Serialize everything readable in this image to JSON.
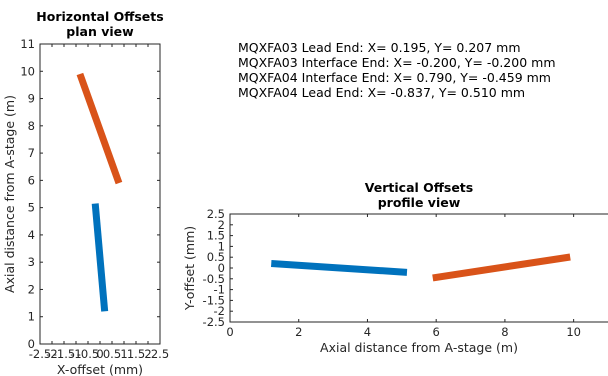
{
  "annotation_lines": [
    "MQXFA03 Lead End: X= 0.195, Y= 0.207  mm",
    "MQXFA03 Interface End: X= -0.200, Y= -0.200  mm",
    "MQXFA04 Interface End: X= 0.790, Y= -0.459  mm",
    "MQXFA04 Lead End: X= -0.837, Y= 0.510  mm"
  ],
  "colors": {
    "blue": "#0072bd",
    "orange": "#d95319"
  },
  "chart_data": [
    {
      "type": "line",
      "title_lines": [
        "Horizontal Offsets",
        "plan view"
      ],
      "xlabel": "X-offset (mm)",
      "ylabel": "Axial distance from A-stage (m)",
      "xlim": [
        -2.5,
        2.5
      ],
      "ylim": [
        0,
        11
      ],
      "xticks": [
        "-2.5",
        "-2",
        "-1.5",
        "-1",
        "-0.5",
        "0",
        "0.5",
        "1",
        "1.5",
        "2",
        "2.5"
      ],
      "yticks": [
        "0",
        "1",
        "2",
        "3",
        "4",
        "5",
        "6",
        "7",
        "8",
        "9",
        "10",
        "11"
      ],
      "grid": false,
      "series": [
        {
          "color": "#0072bd",
          "points": [
            [
              0.195,
              1.2
            ],
            [
              -0.2,
              5.15
            ]
          ]
        },
        {
          "color": "#d95319",
          "points": [
            [
              0.79,
              5.9
            ],
            [
              -0.837,
              9.9
            ]
          ]
        }
      ]
    },
    {
      "type": "line",
      "title_lines": [
        "Vertical Offsets",
        "profile view"
      ],
      "xlabel": "Axial distance from A-stage (m)",
      "ylabel": "Y-offset (mm)",
      "xlim": [
        0,
        11
      ],
      "ylim": [
        -2.5,
        2.5
      ],
      "xticks": [
        "0",
        "2",
        "4",
        "6",
        "8",
        "10"
      ],
      "yticks": [
        "-2.5",
        "-2",
        "-1.5",
        "-1",
        "-0.5",
        "0",
        "0.5",
        "1",
        "1.5",
        "2",
        "2.5"
      ],
      "grid": false,
      "series": [
        {
          "color": "#0072bd",
          "points": [
            [
              1.2,
              0.207
            ],
            [
              5.15,
              -0.2
            ]
          ]
        },
        {
          "color": "#d95319",
          "points": [
            [
              5.9,
              -0.459
            ],
            [
              9.9,
              0.51
            ]
          ]
        }
      ]
    }
  ]
}
